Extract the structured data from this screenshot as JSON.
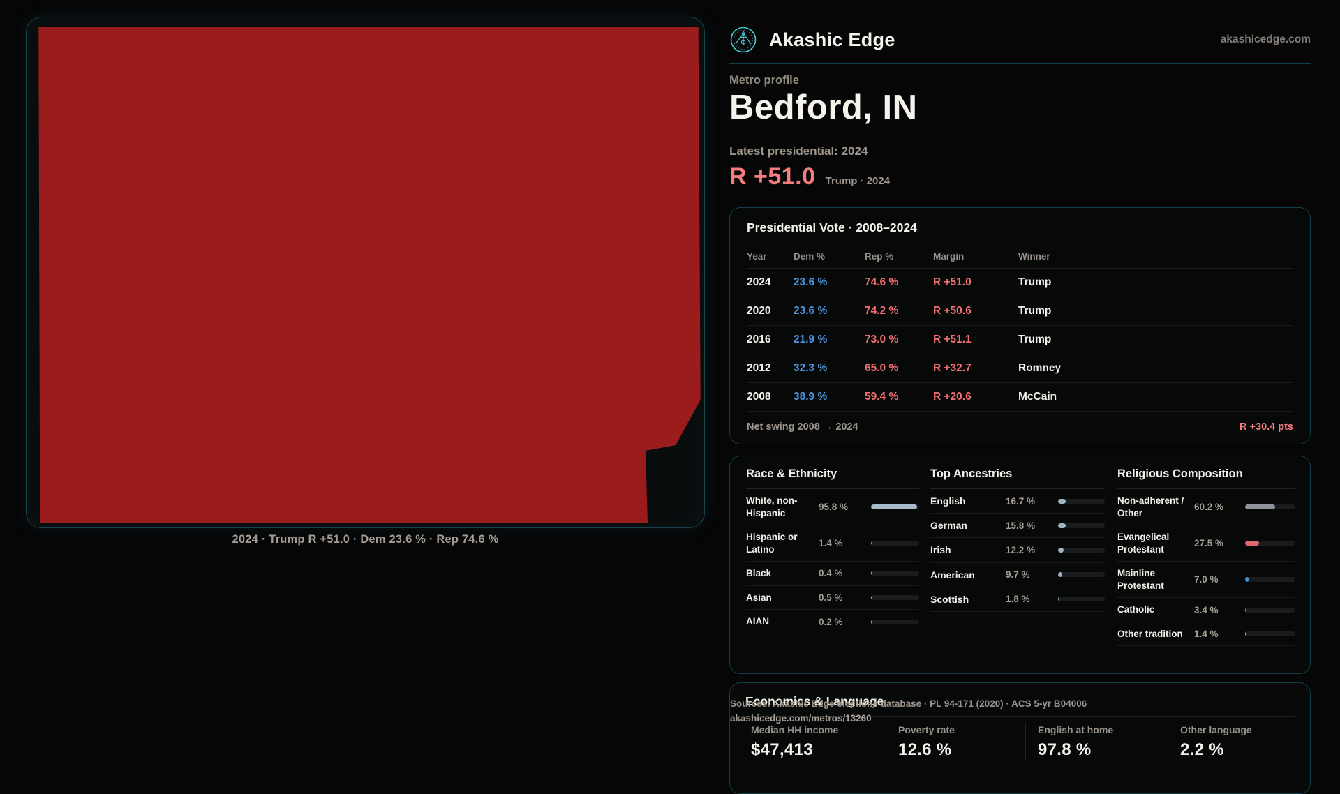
{
  "brand": {
    "name": "Akashic Edge",
    "url": "akashicedge.com"
  },
  "profile": {
    "eyebrow": "Metro profile",
    "title": "Bedford, IN",
    "latest_label": "Latest presidential: 2024",
    "headline_margin": "R +51.0",
    "headline_sub": "Trump · 2024"
  },
  "map": {
    "caption": "2024 · Trump R +51.0 · Dem 23.6 % · Rep 74.6 %"
  },
  "presidential": {
    "title": "Presidential Vote · 2008–2024",
    "columns": [
      "Year",
      "Dem %",
      "Rep %",
      "Margin",
      "Winner"
    ],
    "rows": [
      {
        "year": "2024",
        "dem": "23.6 %",
        "rep": "74.6 %",
        "margin": "R +51.0",
        "winner": "Trump"
      },
      {
        "year": "2020",
        "dem": "23.6 %",
        "rep": "74.2 %",
        "margin": "R +50.6",
        "winner": "Trump"
      },
      {
        "year": "2016",
        "dem": "21.9 %",
        "rep": "73.0 %",
        "margin": "R +51.1",
        "winner": "Trump"
      },
      {
        "year": "2012",
        "dem": "32.3 %",
        "rep": "65.0 %",
        "margin": "R +32.7",
        "winner": "Romney"
      },
      {
        "year": "2008",
        "dem": "38.9 %",
        "rep": "59.4 %",
        "margin": "R +20.6",
        "winner": "McCain"
      }
    ],
    "swing_label": "Net swing 2008 → 2024",
    "swing_value": "R +30.4 pts"
  },
  "demographics": {
    "race": {
      "title": "Race & Ethnicity",
      "rows": [
        {
          "label": "White, non-Hispanic",
          "value": "95.8 %",
          "pct": 95.8,
          "color": "#a9bac9"
        },
        {
          "label": "Hispanic or Latino",
          "value": "1.4 %",
          "pct": 1.4,
          "color": "#c8862f"
        },
        {
          "label": "Black",
          "value": "0.4 %",
          "pct": 0.4,
          "color": "#a9bac9"
        },
        {
          "label": "Asian",
          "value": "0.5 %",
          "pct": 0.5,
          "color": "#a9bac9"
        },
        {
          "label": "AIAN",
          "value": "0.2 %",
          "pct": 0.2,
          "color": "#a9bac9"
        }
      ]
    },
    "ancestries": {
      "title": "Top Ancestries",
      "rows": [
        {
          "label": "English",
          "value": "16.7 %",
          "pct": 16.7,
          "color": "#9fb4c7"
        },
        {
          "label": "German",
          "value": "15.8 %",
          "pct": 15.8,
          "color": "#9fb4c7"
        },
        {
          "label": "Irish",
          "value": "12.2 %",
          "pct": 12.2,
          "color": "#9fb4c7"
        },
        {
          "label": "American",
          "value": "9.7 %",
          "pct": 9.7,
          "color": "#9fb4c7"
        },
        {
          "label": "Scottish",
          "value": "1.8 %",
          "pct": 1.8,
          "color": "#9fb4c7"
        }
      ]
    },
    "religion": {
      "title": "Religious Composition",
      "rows": [
        {
          "label": "Non-adherent / Other",
          "value": "60.2 %",
          "pct": 60.2,
          "color": "#8e939b"
        },
        {
          "label": "Evangelical Protestant",
          "value": "27.5 %",
          "pct": 27.5,
          "color": "#de686e"
        },
        {
          "label": "Mainline Protestant",
          "value": "7.0 %",
          "pct": 7.0,
          "color": "#4a90e2"
        },
        {
          "label": "Catholic",
          "value": "3.4 %",
          "pct": 3.4,
          "color": "#d6a319"
        },
        {
          "label": "Other tradition",
          "value": "1.4 %",
          "pct": 1.4,
          "color": "#ccd0d4"
        }
      ]
    }
  },
  "economics": {
    "title": "Economics & Language",
    "stats": [
      {
        "label": "Median HH income",
        "value": "$47,413"
      },
      {
        "label": "Poverty rate",
        "value": "12.6 %"
      },
      {
        "label": "English at home",
        "value": "97.8 %"
      },
      {
        "label": "Other language",
        "value": "2.2 %"
      }
    ]
  },
  "sources": {
    "line1": "Sources: Akashic Edge elections database · PL 94-171 (2020) · ACS 5-yr B04006",
    "line2": "akashicedge.com/metros/13260"
  },
  "colors": {
    "map_fill": "#9a1c1c",
    "accent_red": "#f57d7d",
    "dem_blue": "#4f93dd",
    "rep_red": "#ef6e6e",
    "teal_border": "#123e47",
    "logo_teal": "#4ecbdc"
  }
}
